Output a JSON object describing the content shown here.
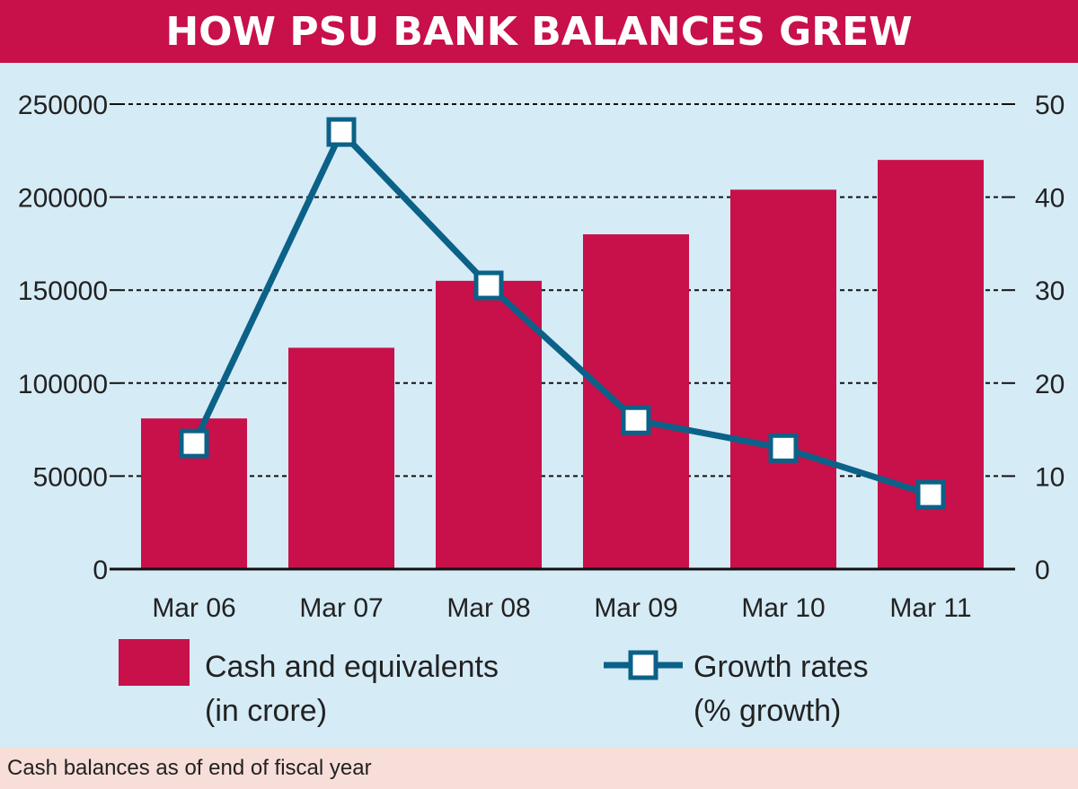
{
  "title": "HOW PSU BANK BALANCES GREW",
  "footnote": "Cash balances as of end of fiscal year",
  "colors": {
    "bar": "#c8104a",
    "line": "#0b6187",
    "plot_bg": "#d5ebf6",
    "footer_bg": "#f8ded9"
  },
  "legend": {
    "bars_line1": "Cash and equivalents",
    "bars_line2": "(in crore)",
    "line_line1": "Growth rates",
    "line_line2": "(% growth)"
  },
  "chart_data": {
    "type": "bar",
    "title": "HOW PSU BANK BALANCES GREW",
    "categories": [
      "Mar 06",
      "Mar 07",
      "Mar 08",
      "Mar 09",
      "Mar 10",
      "Mar 11"
    ],
    "series": [
      {
        "name": "Cash and equivalents (in crore)",
        "type": "bar",
        "axis": "left",
        "values": [
          81000,
          119000,
          155000,
          180000,
          204000,
          220000
        ]
      },
      {
        "name": "Growth rates (% growth)",
        "type": "line",
        "axis": "right",
        "values": [
          13.5,
          47,
          30.5,
          16,
          13,
          8
        ]
      }
    ],
    "y_left": {
      "range": [
        0,
        250000
      ],
      "ticks": [
        "0",
        "50000",
        "100000",
        "150000",
        "200000",
        "250000"
      ]
    },
    "y_right": {
      "range": [
        0,
        50
      ],
      "ticks": [
        "0",
        "10",
        "20",
        "30",
        "40",
        "50"
      ]
    },
    "grid": "dashed horizontal",
    "legend_position": "bottom"
  }
}
